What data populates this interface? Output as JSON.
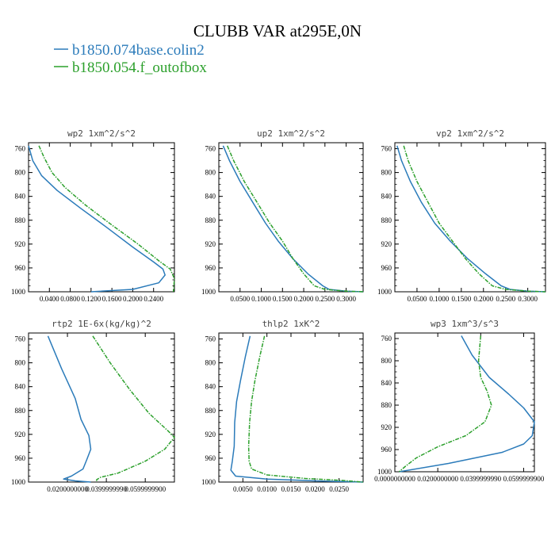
{
  "figure": {
    "title": "CLUBB VAR at295E,0N",
    "legend": [
      {
        "label": "b1850.074base.colin2",
        "color": "#2b7bba"
      },
      {
        "label": "b1850.054.f_outofbox",
        "color": "#2ca02c"
      }
    ]
  },
  "chart_data": [
    {
      "type": "line",
      "title": "wp2   1xm^2/s^2",
      "xlim": [
        0.0,
        0.28
      ],
      "ylim": [
        1000,
        750
      ],
      "y_inverted": true,
      "xticks": [
        0.04,
        0.08,
        0.12,
        0.16,
        0.2,
        0.24
      ],
      "xtick_labels": [
        "0.0400",
        "0.0800",
        "0.1200",
        "0.1600",
        "0.2000",
        "0.2400"
      ],
      "yticks": [
        760,
        800,
        840,
        880,
        920,
        960,
        1000
      ],
      "series": [
        {
          "color": "#2b7bba",
          "style": "solid",
          "x": [
            0.0,
            0.008,
            0.025,
            0.055,
            0.1,
            0.15,
            0.2,
            0.24,
            0.258,
            0.262,
            0.25,
            0.2,
            0.12
          ],
          "y": [
            755,
            780,
            805,
            830,
            860,
            892,
            925,
            950,
            962,
            972,
            985,
            996,
            1000
          ]
        },
        {
          "color": "#2ca02c",
          "style": "dashed",
          "x": [
            0.02,
            0.03,
            0.045,
            0.07,
            0.11,
            0.16,
            0.21,
            0.25,
            0.272,
            0.28,
            0.278
          ],
          "y": [
            755,
            775,
            800,
            825,
            855,
            888,
            920,
            948,
            962,
            978,
            1000
          ]
        }
      ]
    },
    {
      "type": "line",
      "title": "up2   1xm^2/s^2",
      "xlim": [
        0.0,
        0.34
      ],
      "ylim": [
        1000,
        750
      ],
      "y_inverted": true,
      "xticks": [
        0.05,
        0.1,
        0.15,
        0.2,
        0.25,
        0.3
      ],
      "xtick_labels": [
        "0.0500",
        "0.1000",
        "0.1500",
        "0.2000",
        "0.2500",
        "0.3000"
      ],
      "yticks": [
        760,
        800,
        840,
        880,
        920,
        960,
        1000
      ],
      "series": [
        {
          "color": "#2b7bba",
          "style": "solid",
          "x": [
            0.01,
            0.025,
            0.05,
            0.08,
            0.11,
            0.14,
            0.175,
            0.21,
            0.245,
            0.26,
            0.3,
            0.34
          ],
          "y": [
            755,
            780,
            815,
            850,
            885,
            915,
            945,
            970,
            990,
            996,
            999,
            1000
          ]
        },
        {
          "color": "#2ca02c",
          "style": "dashed",
          "x": [
            0.02,
            0.035,
            0.06,
            0.09,
            0.12,
            0.15,
            0.175,
            0.2,
            0.225,
            0.25,
            0.3,
            0.34
          ],
          "y": [
            755,
            780,
            815,
            850,
            885,
            915,
            945,
            970,
            990,
            996,
            999,
            1000
          ]
        }
      ]
    },
    {
      "type": "line",
      "title": "vp2   1xm^2/s^2",
      "xlim": [
        0.0,
        0.34
      ],
      "ylim": [
        1000,
        750
      ],
      "y_inverted": true,
      "xticks": [
        0.05,
        0.1,
        0.15,
        0.2,
        0.25,
        0.3
      ],
      "xtick_labels": [
        "0.0500",
        "0.1000",
        "0.1500",
        "0.2000",
        "0.2500",
        "0.3000"
      ],
      "yticks": [
        760,
        800,
        840,
        880,
        920,
        960,
        1000
      ],
      "series": [
        {
          "color": "#2b7bba",
          "style": "solid",
          "x": [
            0.005,
            0.015,
            0.035,
            0.06,
            0.09,
            0.125,
            0.165,
            0.205,
            0.24,
            0.26,
            0.3,
            0.34
          ],
          "y": [
            755,
            780,
            815,
            850,
            885,
            915,
            945,
            970,
            990,
            996,
            999,
            1000
          ]
        },
        {
          "color": "#2ca02c",
          "style": "dashed",
          "x": [
            0.02,
            0.03,
            0.05,
            0.075,
            0.1,
            0.13,
            0.16,
            0.19,
            0.22,
            0.25,
            0.3,
            0.34
          ],
          "y": [
            755,
            780,
            815,
            850,
            885,
            915,
            945,
            970,
            990,
            996,
            999,
            1000
          ]
        }
      ]
    },
    {
      "type": "line",
      "title": "rtp2   1E-6x(kg/kg)^2",
      "xlim": [
        0.0,
        0.075
      ],
      "ylim": [
        1000,
        750
      ],
      "y_inverted": true,
      "xticks": [
        0.02,
        0.04,
        0.06
      ],
      "xtick_labels": [
        "0.0200000000",
        "0.0399999990",
        "0.0599999900"
      ],
      "yticks": [
        760,
        800,
        840,
        880,
        920,
        960,
        1000
      ],
      "series": [
        {
          "color": "#2b7bba",
          "style": "solid",
          "x": [
            0.01,
            0.017,
            0.024,
            0.027,
            0.031,
            0.032,
            0.03,
            0.028,
            0.022,
            0.018,
            0.024,
            0.032
          ],
          "y": [
            755,
            810,
            860,
            895,
            922,
            945,
            962,
            978,
            990,
            995,
            998,
            1000
          ]
        },
        {
          "color": "#2ca02c",
          "style": "dashed",
          "x": [
            0.033,
            0.042,
            0.052,
            0.062,
            0.072,
            0.075,
            0.07,
            0.06,
            0.046,
            0.037,
            0.035,
            0.035
          ],
          "y": [
            755,
            800,
            845,
            885,
            915,
            925,
            945,
            965,
            985,
            992,
            996,
            1000
          ]
        }
      ]
    },
    {
      "type": "line",
      "title": "thlp2   1xK^2",
      "xlim": [
        0.0,
        0.03
      ],
      "ylim": [
        1000,
        750
      ],
      "y_inverted": true,
      "xticks": [
        0.005,
        0.01,
        0.015,
        0.02,
        0.025
      ],
      "xtick_labels": [
        "0.0050",
        "0.0100",
        "0.0150",
        "0.0200",
        "0.0250"
      ],
      "yticks": [
        760,
        800,
        840,
        880,
        920,
        960,
        1000
      ],
      "series": [
        {
          "color": "#2b7bba",
          "style": "solid",
          "x": [
            0.0065,
            0.0055,
            0.0045,
            0.0037,
            0.0033,
            0.0032,
            0.0028,
            0.0025,
            0.0035,
            0.01,
            0.02,
            0.03
          ],
          "y": [
            755,
            790,
            830,
            865,
            900,
            940,
            965,
            980,
            990,
            995,
            998,
            1000
          ]
        },
        {
          "color": "#2ca02c",
          "style": "dashed",
          "x": [
            0.0095,
            0.0085,
            0.0075,
            0.0068,
            0.0064,
            0.0062,
            0.0063,
            0.0068,
            0.01,
            0.018,
            0.025,
            0.03
          ],
          "y": [
            755,
            790,
            830,
            865,
            900,
            940,
            965,
            978,
            988,
            994,
            997,
            1000
          ]
        }
      ]
    },
    {
      "type": "line",
      "title": "wp3   1xm^3/s^3",
      "xlim": [
        0.0,
        0.065
      ],
      "ylim": [
        1000,
        750
      ],
      "y_inverted": true,
      "xticks": [
        0.0,
        0.02,
        0.04,
        0.06
      ],
      "xtick_labels": [
        "0.0000000000",
        "0.0200000000",
        "0.0399999990",
        "0.0599999900"
      ],
      "yticks": [
        760,
        800,
        840,
        880,
        920,
        960,
        1000
      ],
      "series": [
        {
          "color": "#2b7bba",
          "style": "solid",
          "x": [
            0.031,
            0.036,
            0.044,
            0.053,
            0.06,
            0.065,
            0.064,
            0.06,
            0.05,
            0.025,
            0.002
          ],
          "y": [
            755,
            790,
            830,
            860,
            885,
            910,
            935,
            950,
            965,
            985,
            1000
          ]
        },
        {
          "color": "#2ca02c",
          "style": "dashed",
          "x": [
            0.04,
            0.039,
            0.04,
            0.043,
            0.045,
            0.042,
            0.033,
            0.02,
            0.01,
            0.005,
            0.002
          ],
          "y": [
            755,
            800,
            830,
            855,
            880,
            910,
            935,
            955,
            975,
            990,
            1000
          ]
        }
      ]
    }
  ]
}
